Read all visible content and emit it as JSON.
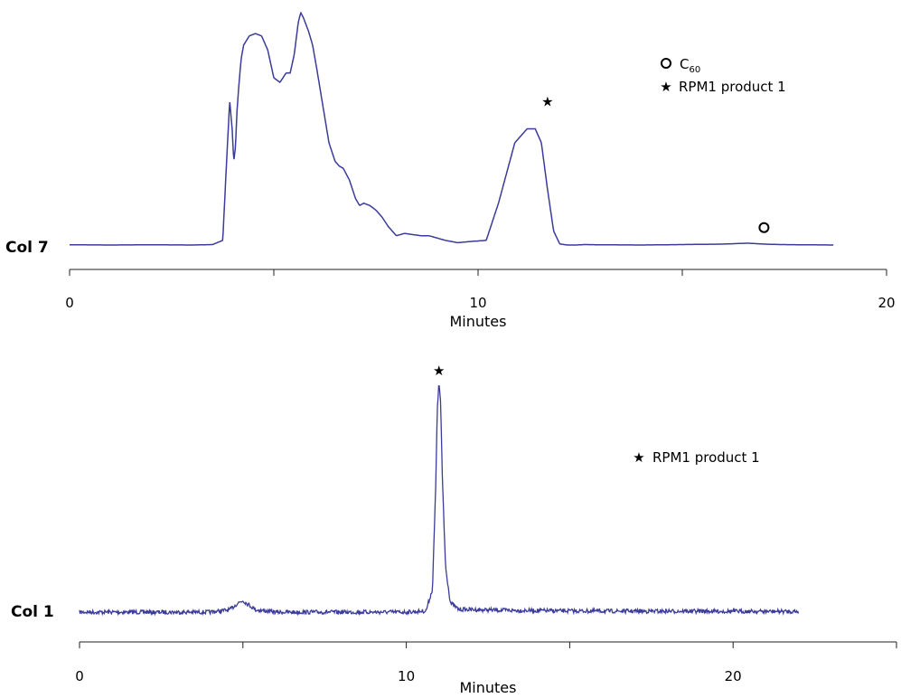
{
  "chart_data": [
    {
      "type": "line",
      "panel_label": "Col 7",
      "xlabel": "Minutes",
      "ylabel": "",
      "xlim": [
        0,
        20
      ],
      "x_tick_labels": [
        {
          "value": 0,
          "label": "0"
        },
        {
          "value": 10,
          "label": "10"
        },
        {
          "value": 20,
          "label": "20"
        }
      ],
      "x_minor_ticks": [
        5,
        15
      ],
      "grid": false,
      "line_color": "#3b3b9a",
      "series": [
        {
          "x": [
            0,
            1,
            2,
            3,
            3.5,
            3.75,
            3.85,
            3.92,
            3.98,
            4.02,
            4.06,
            4.1,
            4.15,
            4.2,
            4.26,
            4.4,
            4.55,
            4.7,
            4.85,
            5.0,
            5.15,
            5.3,
            5.4,
            5.5,
            5.6,
            5.66,
            5.72,
            5.85,
            5.95,
            6.05,
            6.2,
            6.35,
            6.5,
            6.6,
            6.7,
            6.85,
            7.0,
            7.1,
            7.2,
            7.35,
            7.5,
            7.65,
            7.8,
            8.0,
            8.2,
            8.4,
            8.6,
            8.8,
            9.0,
            9.2,
            9.5,
            9.8,
            10.2,
            10.5,
            10.9,
            11.2,
            11.4,
            11.55,
            11.7,
            11.85,
            12.0,
            12.1,
            12.2,
            12.4,
            12.6,
            13,
            14,
            15,
            16,
            16.6,
            17.0,
            17.4,
            18,
            18.7
          ],
          "y": [
            0.001,
            0.0,
            0.001,
            0.0,
            0.002,
            0.02,
            0.38,
            0.62,
            0.5,
            0.36,
            0.42,
            0.58,
            0.7,
            0.8,
            0.86,
            0.9,
            0.91,
            0.9,
            0.84,
            0.72,
            0.7,
            0.74,
            0.74,
            0.82,
            0.96,
            1.0,
            0.98,
            0.92,
            0.86,
            0.76,
            0.6,
            0.44,
            0.36,
            0.34,
            0.33,
            0.28,
            0.2,
            0.17,
            0.18,
            0.17,
            0.15,
            0.12,
            0.08,
            0.04,
            0.05,
            0.045,
            0.04,
            0.04,
            0.03,
            0.02,
            0.01,
            0.015,
            0.02,
            0.18,
            0.44,
            0.5,
            0.5,
            0.44,
            0.24,
            0.06,
            0.005,
            0.002,
            0.0,
            0.0,
            0.002,
            0.001,
            0.0,
            0.002,
            0.004,
            0.008,
            0.004,
            0.002,
            0.001,
            0.0
          ]
        }
      ],
      "annotations": [
        {
          "marker": "star",
          "x": 11.7,
          "y_frac": 0.62
        },
        {
          "marker": "circle",
          "x": 17.0,
          "y_frac": 0.075
        }
      ],
      "legend": [
        {
          "marker": "circle",
          "text": "C",
          "subscript": "60"
        },
        {
          "marker": "star",
          "text": "RPM1 product 1",
          "subscript": ""
        }
      ],
      "legend_placement": "top-right"
    },
    {
      "type": "line",
      "panel_label": "Col 1",
      "xlabel": "Minutes",
      "ylabel": "",
      "xlim": [
        0,
        25
      ],
      "x_tick_labels": [
        {
          "value": 0,
          "label": "0"
        },
        {
          "value": 10,
          "label": "10"
        },
        {
          "value": 20,
          "label": "20"
        }
      ],
      "x_minor_ticks": [
        5,
        15,
        25
      ],
      "grid": false,
      "line_color": "#3b3b9a",
      "noisy": true,
      "series": [
        {
          "x": [
            0,
            2,
            4,
            4.6,
            4.85,
            5.0,
            5.15,
            5.4,
            6,
            8,
            10,
            10.6,
            10.8,
            10.9,
            10.95,
            11.0,
            11.05,
            11.1,
            11.2,
            11.35,
            11.6,
            13,
            15,
            17,
            19,
            21,
            22
          ],
          "y": [
            0.0,
            0.0,
            0.0,
            0.01,
            0.04,
            0.05,
            0.035,
            0.01,
            0.0,
            0.0,
            0.0,
            0.005,
            0.1,
            0.55,
            0.9,
            1.0,
            0.92,
            0.6,
            0.2,
            0.04,
            0.012,
            0.008,
            0.005,
            0.004,
            0.004,
            0.003,
            0.003
          ]
        }
      ],
      "annotations": [
        {
          "marker": "star",
          "x": 11.0,
          "y_frac": 1.06
        }
      ],
      "legend": [
        {
          "marker": "star",
          "text": "RPM1 product 1",
          "subscript": ""
        }
      ],
      "legend_placement": "right"
    }
  ]
}
